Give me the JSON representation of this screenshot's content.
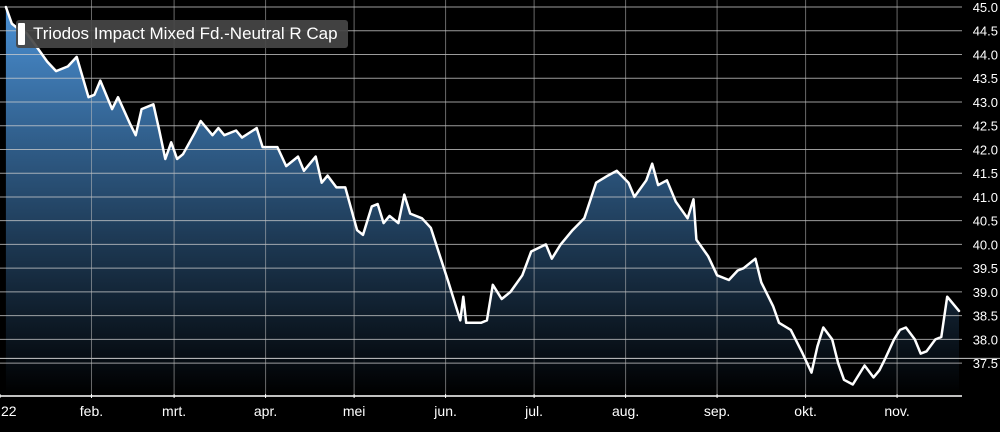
{
  "chart_data": {
    "type": "area",
    "title": "",
    "xlabel": "",
    "ylabel": "",
    "grid": true,
    "legend_position": "top-left",
    "series": [
      {
        "name": "Triodos Impact Mixed Fd.-Neutral R Cap",
        "color": "#ffffff",
        "fill_top": "#4a90d4",
        "fill_bottom": "#000000",
        "points": [
          [
            "2022-01-03",
            45.0
          ],
          [
            "2022-01-05",
            44.65
          ],
          [
            "2022-01-07",
            44.55
          ],
          [
            "2022-01-10",
            44.45
          ],
          [
            "2022-01-13",
            44.2
          ],
          [
            "2022-01-17",
            43.85
          ],
          [
            "2022-01-20",
            43.65
          ],
          [
            "2022-01-24",
            43.75
          ],
          [
            "2022-01-27",
            43.95
          ],
          [
            "2022-01-31",
            43.1
          ],
          [
            "2022-02-02",
            43.15
          ],
          [
            "2022-02-04",
            43.45
          ],
          [
            "2022-02-08",
            42.85
          ],
          [
            "2022-02-10",
            43.1
          ],
          [
            "2022-02-14",
            42.55
          ],
          [
            "2022-02-16",
            42.3
          ],
          [
            "2022-02-18",
            42.85
          ],
          [
            "2022-02-22",
            42.95
          ],
          [
            "2022-02-24",
            42.4
          ],
          [
            "2022-02-26",
            41.8
          ],
          [
            "2022-02-28",
            42.15
          ],
          [
            "2022-03-02",
            41.8
          ],
          [
            "2022-03-04",
            41.9
          ],
          [
            "2022-03-08",
            42.35
          ],
          [
            "2022-03-10",
            42.6
          ],
          [
            "2022-03-14",
            42.3
          ],
          [
            "2022-03-16",
            42.45
          ],
          [
            "2022-03-18",
            42.3
          ],
          [
            "2022-03-22",
            42.4
          ],
          [
            "2022-03-24",
            42.25
          ],
          [
            "2022-03-29",
            42.45
          ],
          [
            "2022-03-31",
            42.05
          ],
          [
            "2022-04-05",
            42.05
          ],
          [
            "2022-04-08",
            41.65
          ],
          [
            "2022-04-12",
            41.85
          ],
          [
            "2022-04-14",
            41.55
          ],
          [
            "2022-04-18",
            41.85
          ],
          [
            "2022-04-20",
            41.3
          ],
          [
            "2022-04-22",
            41.45
          ],
          [
            "2022-04-25",
            41.2
          ],
          [
            "2022-04-28",
            41.2
          ],
          [
            "2022-05-02",
            40.3
          ],
          [
            "2022-05-04",
            40.2
          ],
          [
            "2022-05-07",
            40.8
          ],
          [
            "2022-05-09",
            40.85
          ],
          [
            "2022-05-11",
            40.45
          ],
          [
            "2022-05-13",
            40.6
          ],
          [
            "2022-05-16",
            40.45
          ],
          [
            "2022-05-18",
            41.05
          ],
          [
            "2022-05-20",
            40.65
          ],
          [
            "2022-05-24",
            40.55
          ],
          [
            "2022-05-27",
            40.35
          ],
          [
            "2022-06-02",
            39.2
          ],
          [
            "2022-06-06",
            38.4
          ],
          [
            "2022-06-07",
            38.9
          ],
          [
            "2022-06-08",
            38.35
          ],
          [
            "2022-06-13",
            38.35
          ],
          [
            "2022-06-15",
            38.4
          ],
          [
            "2022-06-17",
            39.15
          ],
          [
            "2022-06-20",
            38.85
          ],
          [
            "2022-06-23",
            39.0
          ],
          [
            "2022-06-27",
            39.35
          ],
          [
            "2022-06-30",
            39.85
          ],
          [
            "2022-07-05",
            40.0
          ],
          [
            "2022-07-07",
            39.7
          ],
          [
            "2022-07-10",
            40.0
          ],
          [
            "2022-07-14",
            40.3
          ],
          [
            "2022-07-18",
            40.55
          ],
          [
            "2022-07-22",
            41.3
          ],
          [
            "2022-07-26",
            41.45
          ],
          [
            "2022-07-29",
            41.55
          ],
          [
            "2022-08-02",
            41.3
          ],
          [
            "2022-08-04",
            41.0
          ],
          [
            "2022-08-08",
            41.35
          ],
          [
            "2022-08-10",
            41.7
          ],
          [
            "2022-08-12",
            41.25
          ],
          [
            "2022-08-15",
            41.35
          ],
          [
            "2022-08-18",
            40.9
          ],
          [
            "2022-08-22",
            40.55
          ],
          [
            "2022-08-24",
            40.95
          ],
          [
            "2022-08-25",
            40.1
          ],
          [
            "2022-08-29",
            39.75
          ],
          [
            "2022-09-01",
            39.35
          ],
          [
            "2022-09-05",
            39.25
          ],
          [
            "2022-09-08",
            39.45
          ],
          [
            "2022-09-10",
            39.5
          ],
          [
            "2022-09-14",
            39.7
          ],
          [
            "2022-09-16",
            39.2
          ],
          [
            "2022-09-20",
            38.7
          ],
          [
            "2022-09-22",
            38.35
          ],
          [
            "2022-09-26",
            38.2
          ],
          [
            "2022-09-30",
            37.7
          ],
          [
            "2022-10-03",
            37.3
          ],
          [
            "2022-10-05",
            37.85
          ],
          [
            "2022-10-07",
            38.25
          ],
          [
            "2022-10-10",
            38.0
          ],
          [
            "2022-10-12",
            37.5
          ],
          [
            "2022-10-14",
            37.15
          ],
          [
            "2022-10-17",
            37.05
          ],
          [
            "2022-10-19",
            37.25
          ],
          [
            "2022-10-21",
            37.45
          ],
          [
            "2022-10-24",
            37.2
          ],
          [
            "2022-10-26",
            37.35
          ],
          [
            "2022-10-28",
            37.6
          ],
          [
            "2022-10-31",
            38.0
          ],
          [
            "2022-11-02",
            38.2
          ],
          [
            "2022-11-04",
            38.25
          ],
          [
            "2022-11-07",
            38.0
          ],
          [
            "2022-11-09",
            37.7
          ],
          [
            "2022-11-11",
            37.75
          ],
          [
            "2022-11-14",
            38.0
          ],
          [
            "2022-11-16",
            38.05
          ],
          [
            "2022-11-18",
            38.9
          ],
          [
            "2022-11-22",
            38.6
          ]
        ]
      }
    ],
    "xaxis": {
      "type": "date",
      "range": [
        "2022-01-01",
        "2022-11-23"
      ],
      "ticks": [
        {
          "date": "2022-01-01",
          "label": "22"
        },
        {
          "date": "2022-02-01",
          "label": "feb."
        },
        {
          "date": "2022-03-01",
          "label": "mrt."
        },
        {
          "date": "2022-04-01",
          "label": "apr."
        },
        {
          "date": "2022-05-01",
          "label": "mei"
        },
        {
          "date": "2022-06-01",
          "label": "jun."
        },
        {
          "date": "2022-07-01",
          "label": "jul."
        },
        {
          "date": "2022-08-01",
          "label": "aug."
        },
        {
          "date": "2022-09-01",
          "label": "sep."
        },
        {
          "date": "2022-10-01",
          "label": "okt."
        },
        {
          "date": "2022-11-01",
          "label": "nov."
        }
      ]
    },
    "yaxis": {
      "range": [
        37.0,
        45.0
      ],
      "ticks": [
        {
          "value": 45.0,
          "label": "45.0"
        },
        {
          "value": 44.5,
          "label": "44.5"
        },
        {
          "value": 44.0,
          "label": "44.0"
        },
        {
          "value": 43.5,
          "label": "43.5"
        },
        {
          "value": 43.0,
          "label": "43.0"
        },
        {
          "value": 42.5,
          "label": "42.5"
        },
        {
          "value": 42.0,
          "label": "42.0"
        },
        {
          "value": 41.5,
          "label": "41.5"
        },
        {
          "value": 41.0,
          "label": "41.0"
        },
        {
          "value": 40.5,
          "label": "40.5"
        },
        {
          "value": 40.0,
          "label": "40.0"
        },
        {
          "value": 39.5,
          "label": "39.5"
        },
        {
          "value": 39.0,
          "label": "39.0"
        },
        {
          "value": 38.5,
          "label": "38.5"
        },
        {
          "value": 38.0,
          "label": "38.0"
        },
        {
          "value": 37.5,
          "label": "37.5"
        }
      ],
      "reference_line": 37.6
    }
  }
}
